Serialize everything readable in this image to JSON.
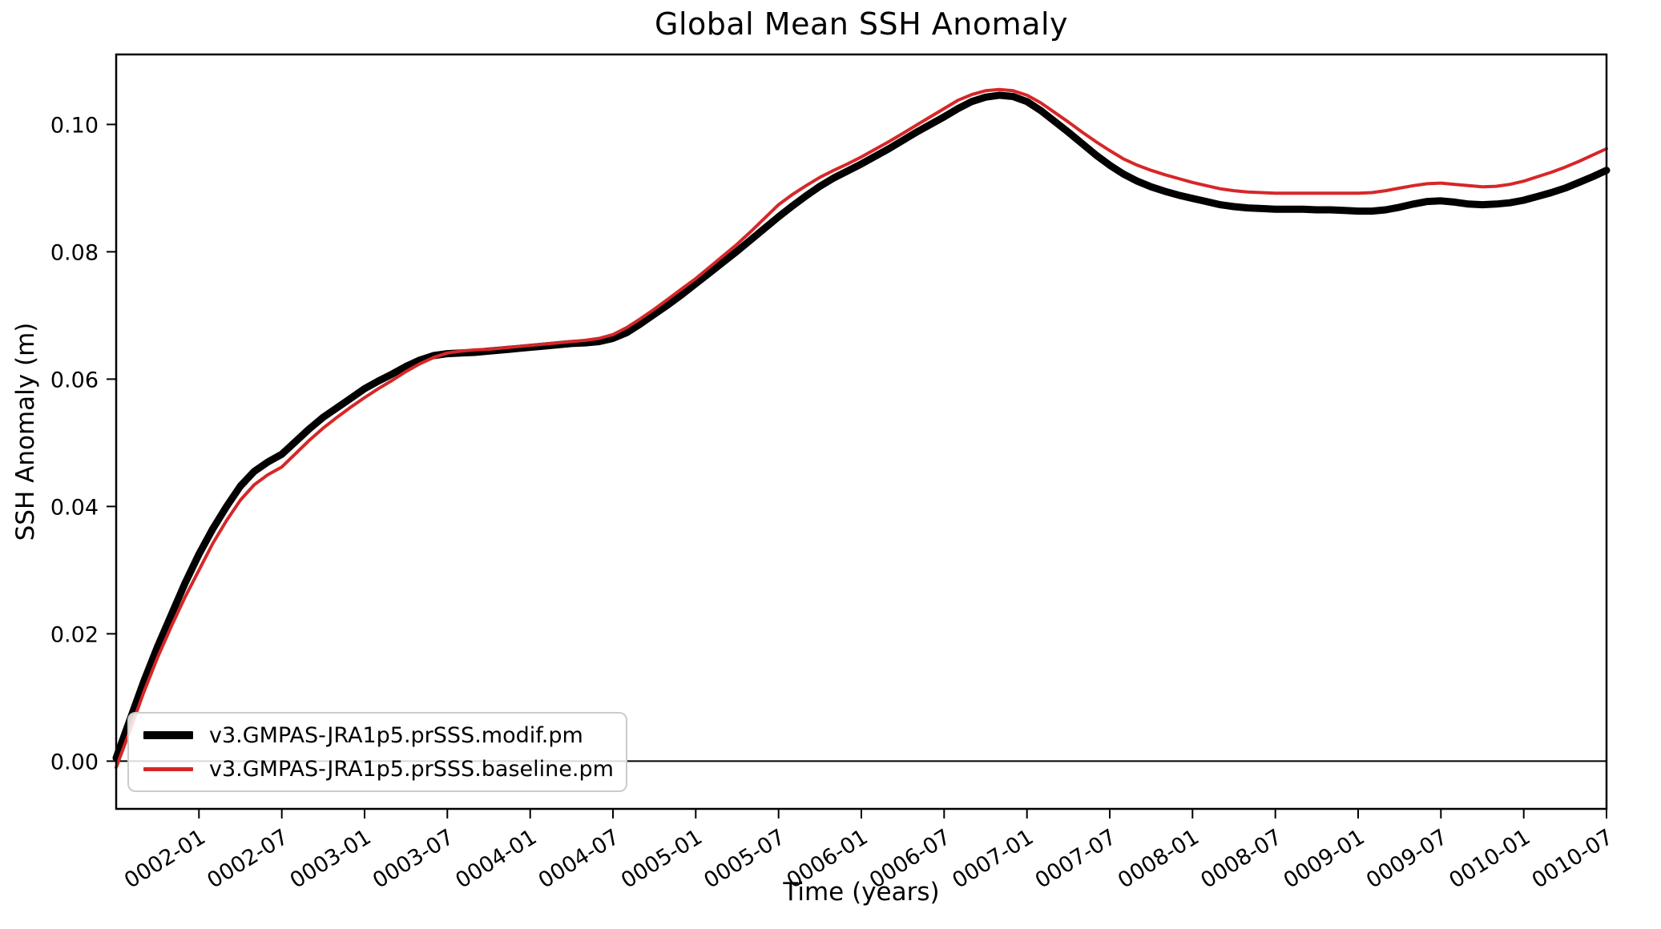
{
  "chart_data": {
    "type": "line",
    "title": "Global Mean SSH Anomaly",
    "xlabel": "Time (years)",
    "ylabel": "SSH Anomaly (m)",
    "grid": false,
    "legend_position": "lower left",
    "background_color": "#ffffff",
    "axis_color": "#000000",
    "x_start_label": "0001-07",
    "x_months_span": 108,
    "x_tick_months": [
      6,
      12,
      18,
      24,
      30,
      36,
      42,
      48,
      54,
      60,
      66,
      72,
      78,
      84,
      90,
      96,
      102,
      108
    ],
    "x_tick_labels": [
      "0002-01",
      "0002-07",
      "0003-01",
      "0003-07",
      "0004-01",
      "0004-07",
      "0005-01",
      "0005-07",
      "0006-01",
      "0006-07",
      "0007-01",
      "0007-07",
      "0008-01",
      "0008-07",
      "0009-01",
      "0009-07",
      "0010-01",
      "0010-07"
    ],
    "x_tick_rotation_deg": 32,
    "y_ticks": [
      0.0,
      0.02,
      0.04,
      0.06,
      0.08,
      0.1
    ],
    "y_tick_labels": [
      "0.00",
      "0.02",
      "0.04",
      "0.06",
      "0.08",
      "0.10"
    ],
    "ylim": [
      -0.0075,
      0.111
    ],
    "axhline": 0.0,
    "series": [
      {
        "name": "v3.GMPAS-JRA1p5.prSSS.modif.pm",
        "color": "#000000",
        "linewidth": 9,
        "values": [
          0.0005,
          0.0065,
          0.0125,
          0.018,
          0.023,
          0.028,
          0.0325,
          0.0365,
          0.04,
          0.0432,
          0.0455,
          0.047,
          0.0482,
          0.0502,
          0.0522,
          0.054,
          0.0555,
          0.057,
          0.0585,
          0.0597,
          0.0608,
          0.062,
          0.063,
          0.0637,
          0.064,
          0.0641,
          0.0642,
          0.0644,
          0.0646,
          0.0648,
          0.065,
          0.0652,
          0.0654,
          0.0656,
          0.0657,
          0.0659,
          0.0664,
          0.0673,
          0.0687,
          0.0702,
          0.0717,
          0.0733,
          0.075,
          0.0767,
          0.0784,
          0.0801,
          0.0819,
          0.0837,
          0.0855,
          0.0872,
          0.0888,
          0.0903,
          0.0916,
          0.0927,
          0.0938,
          0.095,
          0.0962,
          0.0975,
          0.0988,
          0.1,
          0.1012,
          0.1025,
          0.1036,
          0.1043,
          0.1046,
          0.1044,
          0.1036,
          0.1022,
          0.1005,
          0.0988,
          0.097,
          0.0952,
          0.0936,
          0.0922,
          0.0911,
          0.0902,
          0.0895,
          0.0889,
          0.0884,
          0.0879,
          0.0874,
          0.0871,
          0.0869,
          0.0868,
          0.0867,
          0.0867,
          0.0867,
          0.0866,
          0.0866,
          0.0865,
          0.0864,
          0.0864,
          0.0866,
          0.087,
          0.0875,
          0.0879,
          0.088,
          0.0878,
          0.0875,
          0.0874,
          0.0875,
          0.0877,
          0.0881,
          0.0887,
          0.0893,
          0.09,
          0.0909,
          0.0918,
          0.0928
        ]
      },
      {
        "name": "v3.GMPAS-JRA1p5.prSSS.baseline.pm",
        "color": "#d62728",
        "linewidth": 4,
        "values": [
          -0.001,
          0.0048,
          0.0108,
          0.0163,
          0.0212,
          0.0258,
          0.03,
          0.0342,
          0.0378,
          0.041,
          0.0434,
          0.045,
          0.0462,
          0.0483,
          0.0504,
          0.0523,
          0.054,
          0.0556,
          0.0571,
          0.0585,
          0.0598,
          0.0612,
          0.0624,
          0.0634,
          0.0641,
          0.0644,
          0.0646,
          0.0647,
          0.0649,
          0.0651,
          0.0653,
          0.0655,
          0.0657,
          0.0659,
          0.0661,
          0.0664,
          0.067,
          0.0681,
          0.0695,
          0.071,
          0.0726,
          0.0742,
          0.0758,
          0.0776,
          0.0794,
          0.0812,
          0.0832,
          0.0853,
          0.0874,
          0.089,
          0.0904,
          0.0917,
          0.0928,
          0.0938,
          0.0949,
          0.0961,
          0.0973,
          0.0986,
          0.0999,
          0.1012,
          0.1025,
          0.1038,
          0.1047,
          0.1053,
          0.1055,
          0.1053,
          0.1046,
          0.1034,
          0.1019,
          0.1004,
          0.0988,
          0.0973,
          0.0959,
          0.0946,
          0.0936,
          0.0928,
          0.0921,
          0.0915,
          0.0909,
          0.0904,
          0.0899,
          0.0896,
          0.0894,
          0.0893,
          0.0892,
          0.0892,
          0.0892,
          0.0892,
          0.0892,
          0.0892,
          0.0892,
          0.0893,
          0.0896,
          0.09,
          0.0904,
          0.0907,
          0.0908,
          0.0906,
          0.0904,
          0.0902,
          0.0903,
          0.0906,
          0.0911,
          0.0918,
          0.0925,
          0.0933,
          0.0942,
          0.0952,
          0.0962
        ]
      }
    ]
  }
}
